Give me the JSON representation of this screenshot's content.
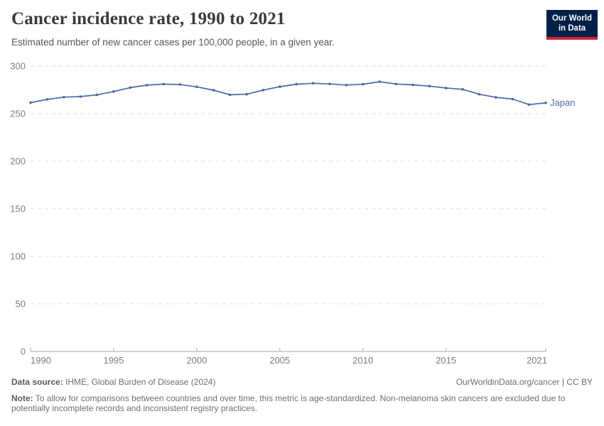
{
  "header": {
    "title": "Cancer incidence rate, 1990 to 2021",
    "subtitle": "Estimated number of new cancer cases per 100,000 people, in a given year.",
    "logo": {
      "line1": "Our World",
      "line2": "in Data",
      "bg_color": "#002147",
      "accent_color": "#cf2336"
    }
  },
  "chart_data": {
    "type": "line",
    "title": "Cancer incidence rate, 1990 to 2021",
    "xlabel": "",
    "ylabel": "",
    "ylim": [
      0,
      300
    ],
    "yticks": [
      0,
      50,
      100,
      150,
      200,
      250,
      300
    ],
    "xticks": [
      1990,
      1995,
      2000,
      2005,
      2010,
      2015,
      2021
    ],
    "grid": "horizontal-dashed",
    "legend": "end-of-line-label",
    "axis_color": "#a8a8a8",
    "gridline_color": "#dcdcdc",
    "x": [
      1990,
      1991,
      1992,
      1993,
      1994,
      1995,
      1996,
      1997,
      1998,
      1999,
      2000,
      2001,
      2002,
      2003,
      2004,
      2005,
      2006,
      2007,
      2008,
      2009,
      2010,
      2011,
      2012,
      2013,
      2014,
      2015,
      2016,
      2017,
      2018,
      2019,
      2020,
      2021
    ],
    "series": [
      {
        "name": "Japan",
        "color": "#4a69a4",
        "values": [
          261.5,
          264.9,
          267.3,
          267.9,
          269.7,
          273.2,
          277.3,
          279.9,
          281.0,
          280.6,
          278.1,
          274.6,
          269.8,
          270.4,
          274.7,
          278.3,
          280.9,
          281.9,
          281.2,
          280.0,
          280.9,
          283.5,
          281.1,
          280.2,
          278.9,
          276.9,
          275.5,
          270.3,
          267.1,
          265.3,
          259.5,
          261.3
        ]
      }
    ]
  },
  "footer": {
    "source_label": "Data source:",
    "source_value": " IHME, Global Burden of Disease (2024)",
    "rights": "OurWorldinData.org/cancer | CC BY",
    "note_label": "Note:",
    "note_value": " To allow for comparisons between countries and over time, this metric is age-standardized. Non-melanoma skin cancers are excluded due to potentially incomplete records and inconsistent registry practices."
  }
}
